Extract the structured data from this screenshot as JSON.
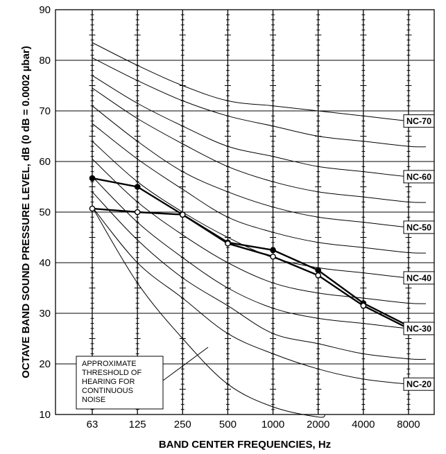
{
  "chart_data": {
    "type": "line",
    "title": "",
    "xlabel": "BAND CENTER FREQUENCIES, Hz",
    "ylabel": "OCTAVE BAND SOUND PRESSURE LEVEL, dB (0 dB = 0.0002 µbar)",
    "categories": [
      "63",
      "125",
      "250",
      "500",
      "1000",
      "2000",
      "4000",
      "8000"
    ],
    "yticks": [
      "10",
      "20",
      "30",
      "40",
      "50",
      "60",
      "70",
      "80",
      "90"
    ],
    "ylim": [
      10,
      90
    ],
    "grid": true,
    "nc_curves": [
      {
        "label": "NC-70",
        "values": [
          83.5,
          79,
          75,
          72,
          71,
          70,
          69,
          68
        ]
      },
      {
        "label": "",
        "values": [
          80.5,
          76,
          72,
          69,
          67,
          65,
          64,
          63
        ]
      },
      {
        "label": "NC-60",
        "values": [
          77,
          71.5,
          67,
          63,
          61,
          59,
          58,
          57
        ]
      },
      {
        "label": "",
        "values": [
          74.5,
          68.5,
          63.5,
          59,
          56,
          54,
          53,
          52
        ]
      },
      {
        "label": "NC-50",
        "values": [
          71,
          64,
          58,
          54,
          51,
          49,
          48,
          47
        ]
      },
      {
        "label": "",
        "values": [
          67.5,
          60.5,
          54.5,
          49,
          46,
          44,
          43,
          42
        ]
      },
      {
        "label": "NC-40",
        "values": [
          64,
          56,
          50,
          45,
          41,
          39,
          38,
          37
        ]
      },
      {
        "label": "",
        "values": [
          60.5,
          52,
          45.5,
          40,
          36,
          34,
          33,
          32
        ]
      },
      {
        "label": "NC-30",
        "values": [
          57,
          48,
          41,
          35,
          31,
          29,
          28,
          27
        ]
      },
      {
        "label": "",
        "values": [
          54,
          44.5,
          37,
          31.5,
          26,
          24,
          22,
          21
        ]
      },
      {
        "label": "NC-20",
        "values": [
          51,
          40,
          33,
          26,
          22,
          19,
          17,
          16
        ]
      },
      {
        "label": "",
        "values": [
          51,
          36,
          25,
          16,
          11.5,
          9.5,
          null,
          null
        ]
      }
    ],
    "series": [
      {
        "marker": "filled",
        "values": [
          56.7,
          55,
          49.5,
          44,
          42.5,
          38.5,
          32,
          27.5
        ]
      },
      {
        "marker": "open",
        "values": [
          50.7,
          50,
          49.5,
          43.8,
          41.2,
          37.5,
          31.5,
          27
        ]
      }
    ],
    "annotation": {
      "lines": [
        "APPROXIMATE",
        "THRESHOLD OF",
        "HEARING FOR",
        "CONTINUOUS",
        "NOISE"
      ]
    }
  }
}
